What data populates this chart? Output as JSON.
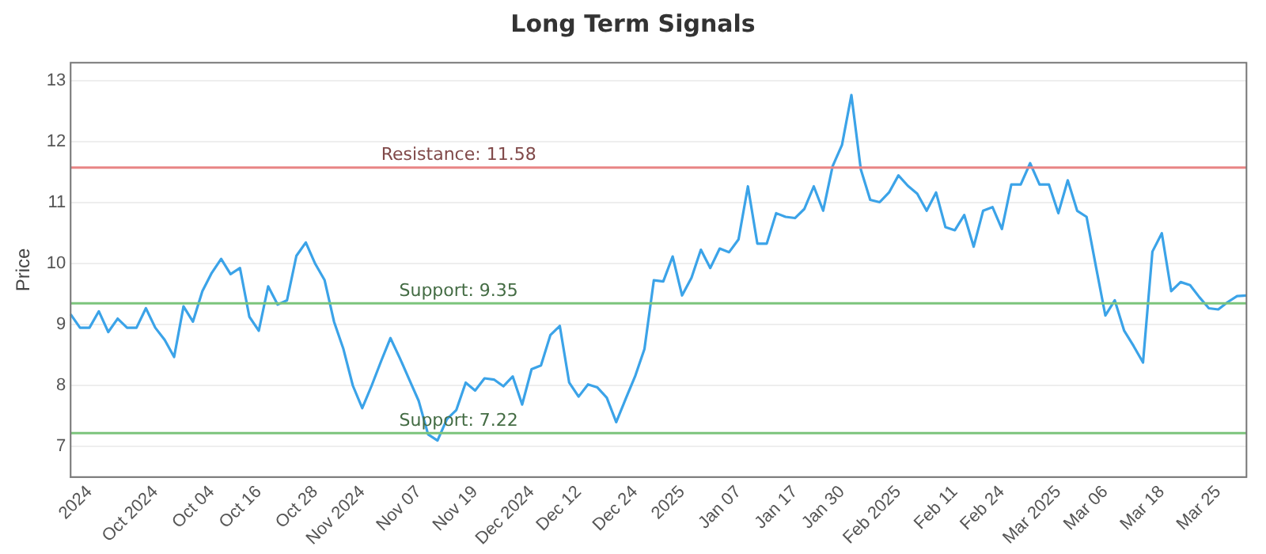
{
  "chart_data": {
    "type": "line",
    "title": "Long Term Signals",
    "ylabel": "Price",
    "categories": [
      null,
      null,
      "2024",
      null,
      null,
      null,
      null,
      null,
      null,
      "Oct 2024",
      null,
      null,
      null,
      null,
      null,
      "Oct 04",
      null,
      null,
      null,
      null,
      "Oct 16",
      null,
      null,
      null,
      null,
      null,
      "Oct 28",
      null,
      null,
      null,
      null,
      "Nov 2024",
      null,
      null,
      null,
      null,
      null,
      "Nov 07",
      null,
      null,
      null,
      null,
      null,
      "Nov 19",
      null,
      null,
      null,
      null,
      null,
      "Dec 2024",
      null,
      null,
      null,
      null,
      "Dec 12",
      null,
      null,
      null,
      null,
      null,
      "Dec 24",
      null,
      null,
      null,
      null,
      "2025",
      null,
      null,
      null,
      null,
      null,
      "Jan 07",
      null,
      null,
      null,
      null,
      null,
      "Jan 17",
      null,
      null,
      null,
      null,
      "Jan 30",
      null,
      null,
      null,
      null,
      null,
      "Feb 2025",
      null,
      null,
      null,
      null,
      null,
      "Feb 11",
      null,
      null,
      null,
      null,
      "Feb 24",
      null,
      null,
      null,
      null,
      null,
      "Mar 2025",
      null,
      null,
      null,
      null,
      "Mar 06",
      null,
      null,
      null,
      null,
      null,
      "Mar 18",
      null,
      null,
      null,
      null,
      null,
      "Mar 25",
      null,
      null,
      null
    ],
    "series": [
      {
        "color": "#3ba3e8",
        "values": [
          9.17,
          8.95,
          8.95,
          9.22,
          8.88,
          9.1,
          8.95,
          8.95,
          9.27,
          8.95,
          8.75,
          8.47,
          9.3,
          9.05,
          9.55,
          9.85,
          10.08,
          9.83,
          9.93,
          9.13,
          8.9,
          9.63,
          9.33,
          9.4,
          10.13,
          10.35,
          10.0,
          9.73,
          9.05,
          8.6,
          8.0,
          7.63,
          8.0,
          8.4,
          8.78,
          8.45,
          8.1,
          7.75,
          7.2,
          7.1,
          7.45,
          7.6,
          8.05,
          7.92,
          8.12,
          8.1,
          7.99,
          8.15,
          7.69,
          8.27,
          8.33,
          8.83,
          8.98,
          8.05,
          7.82,
          8.02,
          7.97,
          7.8,
          7.4,
          7.78,
          8.15,
          8.6,
          9.73,
          9.71,
          10.12,
          9.48,
          9.77,
          10.23,
          9.93,
          10.25,
          10.19,
          10.4,
          11.27,
          10.33,
          10.33,
          10.83,
          10.77,
          10.75,
          10.9,
          11.27,
          10.87,
          11.6,
          11.95,
          12.77,
          11.55,
          11.05,
          11.01,
          11.17,
          11.45,
          11.28,
          11.15,
          10.87,
          11.17,
          10.6,
          10.55,
          10.8,
          10.28,
          10.87,
          10.93,
          10.57,
          11.3,
          11.3,
          11.65,
          11.3,
          11.3,
          10.83,
          11.37,
          10.87,
          10.77,
          9.95,
          9.15,
          9.4,
          8.9,
          8.65,
          8.38,
          10.2,
          10.5,
          9.55,
          9.7,
          9.65,
          9.45,
          9.27,
          9.25,
          9.37,
          9.47,
          9.48
        ]
      }
    ],
    "ylim": [
      6.5,
      13.3
    ],
    "yticks": [
      7,
      8,
      9,
      10,
      11,
      12,
      13
    ],
    "grid": "y",
    "marker": "none",
    "line_style": "solid",
    "ref_lines": [
      {
        "axis": "y",
        "value": 11.58,
        "label": "Resistance: 11.58",
        "color": "#e88585"
      },
      {
        "axis": "y",
        "value": 9.35,
        "label": "Support: 9.35",
        "color": "#7cc47c"
      },
      {
        "axis": "y",
        "value": 7.22,
        "label": "Support: 7.22",
        "color": "#7cc47c"
      }
    ]
  }
}
